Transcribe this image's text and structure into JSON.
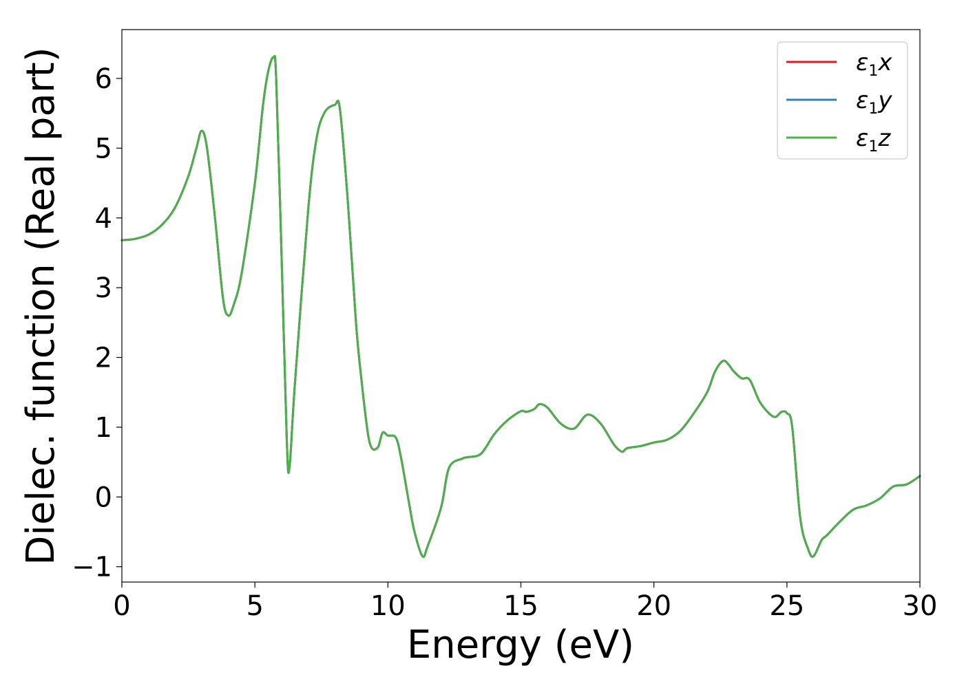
{
  "chart_data": {
    "type": "line",
    "xlabel": "Energy (eV)",
    "ylabel": "Dielec. function (Real part)",
    "xlim": [
      0,
      30
    ],
    "ylim": [
      -1.22,
      6.7
    ],
    "x_ticks": [
      0,
      5,
      10,
      15,
      20,
      25,
      30
    ],
    "x_tick_labels": [
      "0",
      "5",
      "10",
      "15",
      "20",
      "25",
      "30"
    ],
    "y_ticks": [
      -1,
      0,
      1,
      2,
      3,
      4,
      5,
      6
    ],
    "y_tick_labels": [
      "−1",
      "0",
      "1",
      "2",
      "3",
      "4",
      "5",
      "6"
    ],
    "grid": false,
    "legend_position": "top-right",
    "legend": [
      {
        "symbol": "ε",
        "sub": "1",
        "suffix": "x",
        "color": "#e41a1c"
      },
      {
        "symbol": "ε",
        "sub": "1",
        "suffix": "y",
        "color": "#377eb8"
      },
      {
        "symbol": "ε",
        "sub": "1",
        "suffix": "z",
        "color": "#4daf4a"
      }
    ],
    "x": [
      0,
      0.5,
      1.0,
      1.5,
      2.0,
      2.5,
      2.8,
      3.0,
      3.2,
      3.5,
      3.8,
      4.0,
      4.2,
      4.5,
      5.0,
      5.3,
      5.5,
      5.7,
      5.8,
      6.0,
      6.2,
      6.3,
      6.5,
      7.0,
      7.3,
      7.6,
      8.0,
      8.2,
      8.5,
      8.8,
      9.0,
      9.3,
      9.6,
      9.8,
      10.0,
      10.3,
      10.5,
      10.8,
      11.0,
      11.3,
      11.5,
      12.0,
      12.3,
      12.8,
      13.0,
      13.5,
      14.0,
      14.5,
      15.0,
      15.2,
      15.5,
      15.7,
      16.0,
      16.5,
      17.0,
      17.5,
      18.0,
      18.5,
      18.8,
      19.0,
      19.5,
      20.0,
      20.5,
      21.0,
      21.5,
      22.0,
      22.3,
      22.6,
      22.8,
      23.0,
      23.3,
      23.6,
      24.0,
      24.5,
      24.8,
      25.0,
      25.2,
      25.5,
      25.8,
      26.0,
      26.3,
      26.5,
      27.0,
      27.5,
      28.0,
      28.5,
      29.0,
      29.5,
      30.0
    ],
    "series": [
      {
        "name": "ε1x",
        "color": "#e41a1c",
        "values": [
          3.68,
          3.7,
          3.76,
          3.9,
          4.15,
          4.6,
          5.0,
          5.25,
          5.0,
          4.0,
          2.85,
          2.6,
          2.75,
          3.2,
          4.5,
          5.6,
          6.1,
          6.3,
          6.0,
          3.5,
          0.8,
          0.42,
          1.6,
          4.1,
          5.1,
          5.5,
          5.62,
          5.55,
          4.2,
          2.5,
          1.7,
          0.8,
          0.7,
          0.92,
          0.88,
          0.85,
          0.55,
          -0.1,
          -0.5,
          -0.85,
          -0.7,
          -0.15,
          0.42,
          0.55,
          0.57,
          0.62,
          0.9,
          1.1,
          1.23,
          1.22,
          1.26,
          1.33,
          1.28,
          1.05,
          0.98,
          1.18,
          1.05,
          0.75,
          0.65,
          0.7,
          0.73,
          0.78,
          0.82,
          0.95,
          1.2,
          1.5,
          1.8,
          1.95,
          1.9,
          1.8,
          1.7,
          1.68,
          1.35,
          1.15,
          1.22,
          1.2,
          1.0,
          -0.3,
          -0.75,
          -0.85,
          -0.62,
          -0.55,
          -0.35,
          -0.18,
          -0.12,
          -0.02,
          0.15,
          0.18,
          0.3
        ]
      },
      {
        "name": "ε1y",
        "color": "#377eb8",
        "values": [
          3.68,
          3.7,
          3.76,
          3.9,
          4.15,
          4.6,
          5.0,
          5.25,
          5.0,
          4.0,
          2.85,
          2.6,
          2.75,
          3.2,
          4.5,
          5.6,
          6.1,
          6.3,
          6.0,
          3.5,
          0.8,
          0.42,
          1.6,
          4.1,
          5.1,
          5.5,
          5.62,
          5.55,
          4.2,
          2.5,
          1.7,
          0.8,
          0.7,
          0.92,
          0.88,
          0.85,
          0.55,
          -0.1,
          -0.5,
          -0.85,
          -0.7,
          -0.15,
          0.42,
          0.55,
          0.57,
          0.62,
          0.9,
          1.1,
          1.23,
          1.22,
          1.26,
          1.33,
          1.28,
          1.05,
          0.98,
          1.18,
          1.05,
          0.75,
          0.65,
          0.7,
          0.73,
          0.78,
          0.82,
          0.95,
          1.2,
          1.5,
          1.8,
          1.95,
          1.9,
          1.8,
          1.7,
          1.68,
          1.35,
          1.15,
          1.22,
          1.2,
          1.0,
          -0.3,
          -0.75,
          -0.85,
          -0.62,
          -0.55,
          -0.35,
          -0.18,
          -0.12,
          -0.02,
          0.15,
          0.18,
          0.3
        ]
      },
      {
        "name": "ε1z",
        "color": "#4daf4a",
        "values": [
          3.68,
          3.7,
          3.76,
          3.9,
          4.15,
          4.6,
          5.0,
          5.25,
          5.0,
          4.0,
          2.85,
          2.6,
          2.75,
          3.2,
          4.5,
          5.6,
          6.1,
          6.3,
          6.0,
          3.5,
          0.8,
          0.42,
          1.6,
          4.1,
          5.1,
          5.5,
          5.62,
          5.55,
          4.2,
          2.5,
          1.7,
          0.8,
          0.7,
          0.92,
          0.88,
          0.85,
          0.55,
          -0.1,
          -0.5,
          -0.85,
          -0.7,
          -0.15,
          0.42,
          0.55,
          0.57,
          0.62,
          0.9,
          1.1,
          1.23,
          1.22,
          1.26,
          1.33,
          1.28,
          1.05,
          0.98,
          1.18,
          1.05,
          0.75,
          0.65,
          0.7,
          0.73,
          0.78,
          0.82,
          0.95,
          1.2,
          1.5,
          1.8,
          1.95,
          1.9,
          1.8,
          1.7,
          1.68,
          1.35,
          1.15,
          1.22,
          1.2,
          1.0,
          -0.3,
          -0.75,
          -0.85,
          -0.62,
          -0.55,
          -0.35,
          -0.18,
          -0.12,
          -0.02,
          0.15,
          0.18,
          0.3
        ]
      }
    ]
  }
}
